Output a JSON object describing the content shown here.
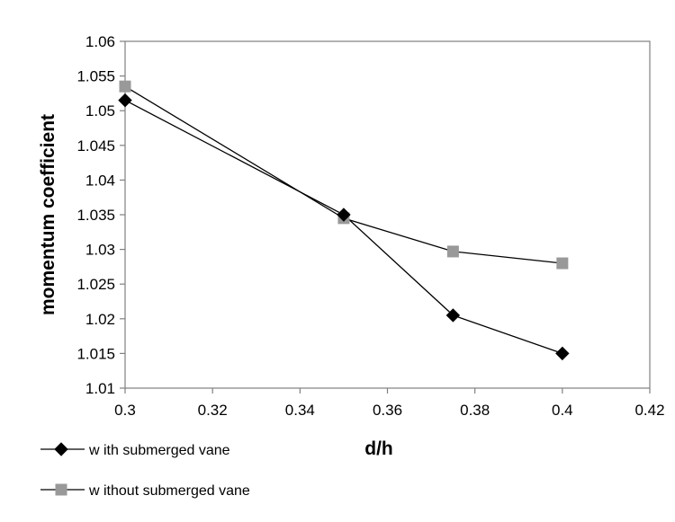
{
  "chart_data": {
    "type": "line",
    "title": "",
    "xlabel": "d/h",
    "ylabel": "momentum coefficient",
    "xlim": [
      0.3,
      0.42
    ],
    "ylim": [
      1.01,
      1.06
    ],
    "x_ticks": [
      "0.3",
      "0.32",
      "0.34",
      "0.36",
      "0.38",
      "0.4",
      "0.42"
    ],
    "y_ticks": [
      "1.01",
      "1.015",
      "1.02",
      "1.025",
      "1.03",
      "1.035",
      "1.04",
      "1.045",
      "1.05",
      "1.055",
      "1.06"
    ],
    "grid": false,
    "legend_position": "bottom-left",
    "series": [
      {
        "name": "w ith submerged vane",
        "marker": "diamond",
        "color": "#000000",
        "x": [
          0.3,
          0.35,
          0.375,
          0.4
        ],
        "y": [
          1.0515,
          1.035,
          1.0205,
          1.015
        ]
      },
      {
        "name": "w ithout submerged vane",
        "marker": "square",
        "color": "#999999",
        "x": [
          0.3,
          0.35,
          0.375,
          0.4
        ],
        "y": [
          1.0535,
          1.0345,
          1.0297,
          1.028
        ]
      }
    ]
  }
}
